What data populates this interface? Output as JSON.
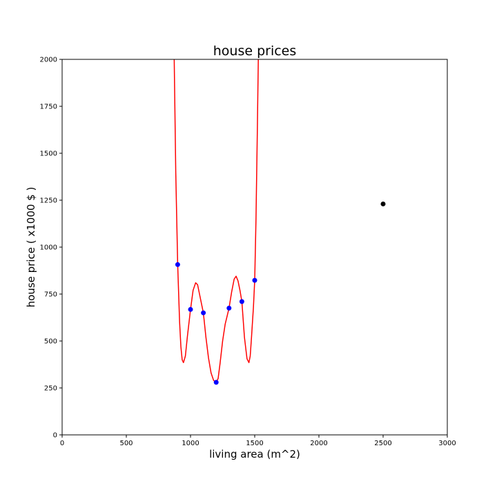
{
  "chart_data": {
    "type": "scatter",
    "title": "house prices",
    "xlabel": "living area (m^2)",
    "ylabel": "house price ( x1000 $ )",
    "xlim": [
      0,
      3000
    ],
    "ylim": [
      0,
      2000
    ],
    "x_ticks": [
      0,
      500,
      1000,
      1500,
      2000,
      2500,
      3000
    ],
    "y_ticks": [
      0,
      250,
      500,
      750,
      1000,
      1250,
      1500,
      1750,
      2000
    ],
    "grid": false,
    "series": [
      {
        "type": "scatter",
        "color": "#0000ff",
        "x": [
          900,
          1000,
          1100,
          1200,
          1300,
          1400,
          1500
        ],
        "y": [
          907,
          668,
          650,
          280,
          675,
          710,
          823
        ]
      },
      {
        "type": "scatter",
        "color": "#000000",
        "x": [
          2500
        ],
        "y": [
          1230
        ]
      },
      {
        "type": "line",
        "color": "#ff0000",
        "x": [
          873,
          885,
          900,
          915,
          925,
          935,
          945,
          960,
          975,
          1000,
          1020,
          1040,
          1055,
          1070,
          1085,
          1100,
          1120,
          1140,
          1160,
          1180,
          1200,
          1215,
          1230,
          1250,
          1270,
          1300,
          1320,
          1340,
          1355,
          1370,
          1385,
          1400,
          1420,
          1440,
          1455,
          1465,
          1475,
          1490,
          1500,
          1510,
          1520,
          1528
        ],
        "y": [
          2000,
          1400,
          907,
          600,
          470,
          400,
          385,
          420,
          520,
          668,
          770,
          810,
          800,
          750,
          700,
          650,
          520,
          410,
          330,
          290,
          280,
          300,
          380,
          500,
          590,
          675,
          760,
          830,
          845,
          820,
          770,
          710,
          520,
          405,
          385,
          420,
          520,
          680,
          823,
          1150,
          1600,
          2000
        ]
      }
    ]
  }
}
